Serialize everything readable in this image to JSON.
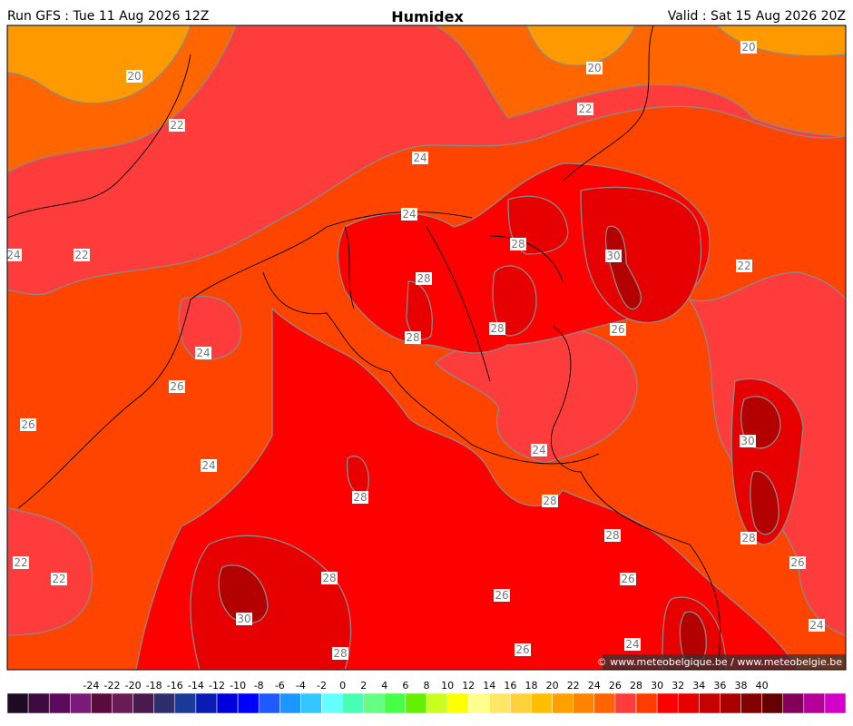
{
  "header": {
    "run": "Run GFS : Tue 11 Aug 2026 12Z",
    "title": "Humidex",
    "valid": "Valid : Sat 15 Aug 2026 20Z"
  },
  "map": {
    "contour_labels": [
      "20",
      "22",
      "24",
      "20",
      "20",
      "22",
      "24",
      "28",
      "30",
      "24",
      "22",
      "22",
      "28",
      "28",
      "26",
      "28",
      "24",
      "26",
      "26",
      "30",
      "24",
      "24",
      "28",
      "28",
      "28",
      "28",
      "22",
      "22",
      "28",
      "26",
      "26",
      "26",
      "30",
      "24",
      "24",
      "26",
      "28"
    ],
    "credit": "© www.meteobelgique.be / www.meteobelgie.be"
  },
  "colorbar": {
    "labels": [
      -24,
      -22,
      -20,
      -18,
      -16,
      -14,
      -12,
      -10,
      -8,
      -6,
      -4,
      -2,
      0,
      2,
      4,
      6,
      8,
      10,
      12,
      14,
      16,
      18,
      20,
      22,
      24,
      26,
      28,
      30,
      32,
      34,
      36,
      38,
      40
    ],
    "colors": [
      "#1e0a22",
      "#3d0a3d",
      "#5c0a5c",
      "#7a1a7a",
      "#5a0a3c",
      "#6a1a55",
      "#4a1a4f",
      "#2e2e6e",
      "#1a3a9a",
      "#0a1ab4",
      "#0000dc",
      "#0000ff",
      "#1e5aff",
      "#1e96ff",
      "#32c8ff",
      "#64ffff",
      "#46ffb4",
      "#64ff82",
      "#46ff46",
      "#64f000",
      "#c8ff1e",
      "#ffff00",
      "#ffff8c",
      "#ffe664",
      "#ffd23c",
      "#ffbe00",
      "#ffa000",
      "#ff8200",
      "#ff6400",
      "#ff3c3c",
      "#ff3c00",
      "#ff0000",
      "#e60000",
      "#c80000",
      "#aa0000",
      "#820000",
      "#640000",
      "#82005a",
      "#b40096",
      "#d200c8"
    ]
  }
}
